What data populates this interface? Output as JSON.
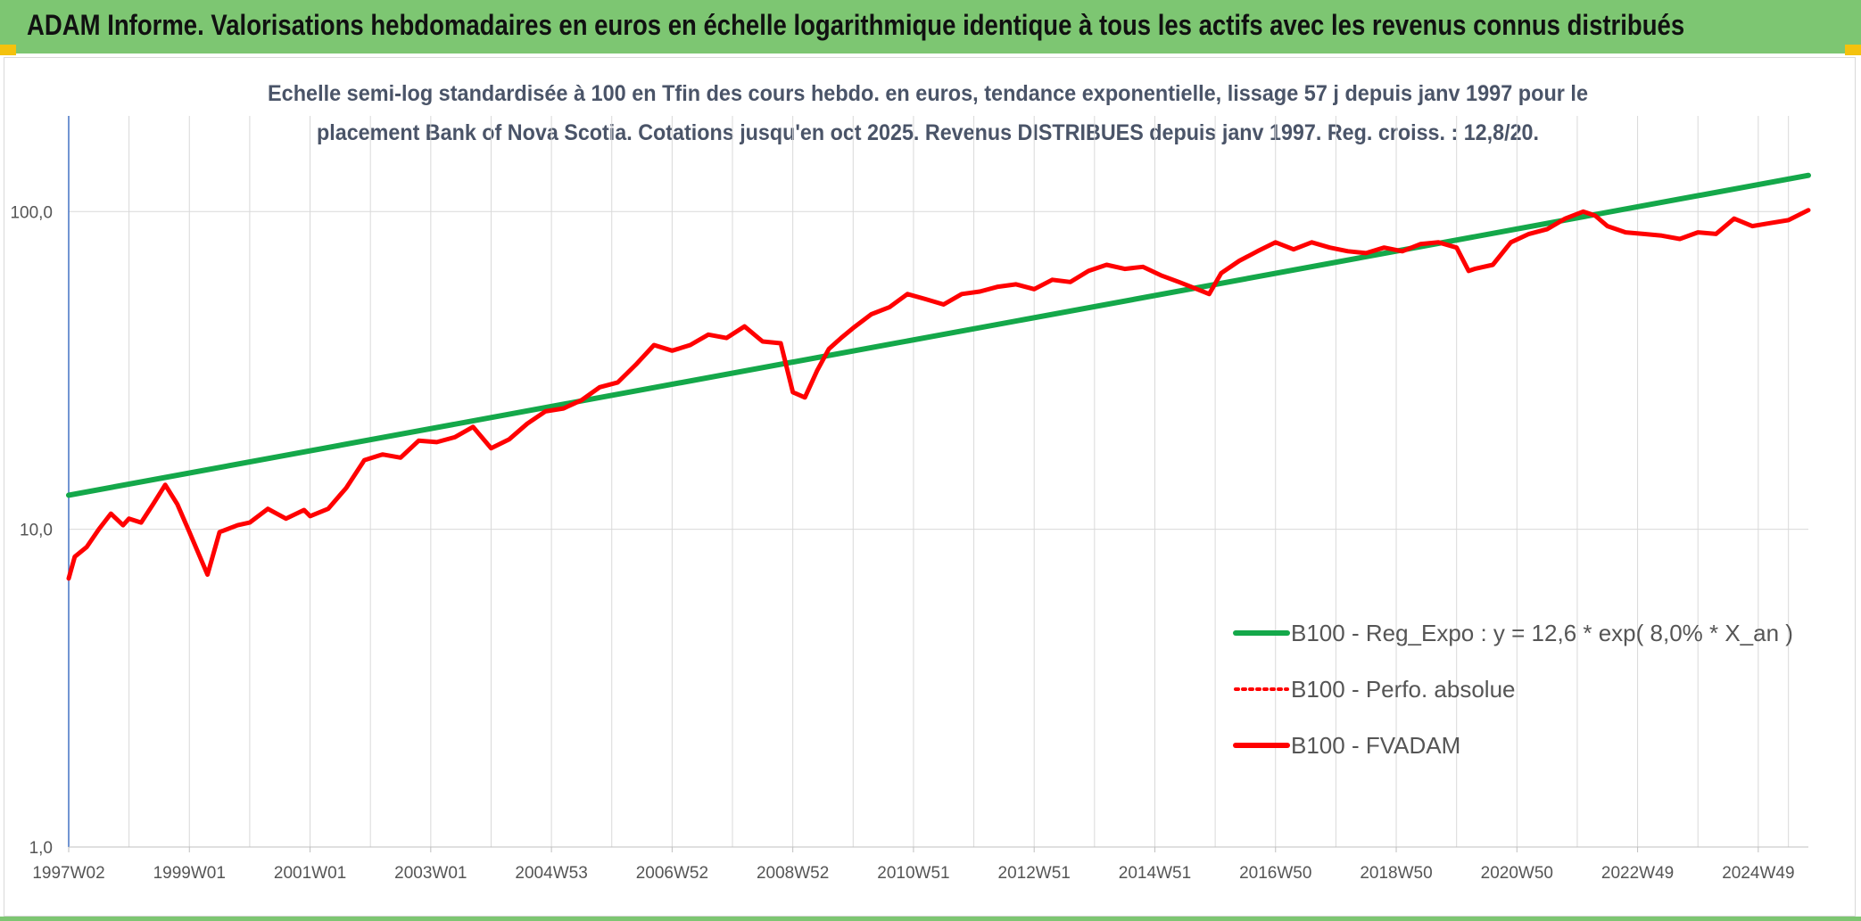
{
  "header": {
    "title": "ADAM Informe. Valorisations hebdomadaires en euros en échelle logarithmique identique à tous les actifs avec les revenus connus distribués"
  },
  "colors": {
    "header_bg": "#7dc672",
    "regression": "#14a84a",
    "fvadam": "#ff0000",
    "perfo": "#ff0000"
  },
  "chart_data": {
    "type": "line",
    "title_lines": [
      "Echelle semi-log standardisée à 100 en Tfin des cours hebdo. en euros, tendance exponentielle, lissage 57 j depuis janv 1997 pour le",
      "placement Bank of Nova Scotia. Cotations jusqu'en oct 2025. Revenus DISTRIBUES depuis janv 1997. Reg. croiss. : 12,8/20."
    ],
    "y_scale": "log",
    "ylim": [
      1,
      200
    ],
    "y_ticks": [
      {
        "value": 1,
        "label": "1,0"
      },
      {
        "value": 10,
        "label": "10,0"
      },
      {
        "value": 100,
        "label": "100,0"
      }
    ],
    "xlim": [
      1997.0,
      2025.83
    ],
    "grid": true,
    "x_ticks": [
      {
        "x": 1997.0,
        "label": "1997W02"
      },
      {
        "x": 1999.0,
        "label": "1999W01"
      },
      {
        "x": 2001.0,
        "label": "2001W01"
      },
      {
        "x": 2003.0,
        "label": "2003W01"
      },
      {
        "x": 2005.0,
        "label": "2004W53"
      },
      {
        "x": 2007.0,
        "label": "2006W52"
      },
      {
        "x": 2009.0,
        "label": "2008W52"
      },
      {
        "x": 2011.0,
        "label": "2010W51"
      },
      {
        "x": 2013.0,
        "label": "2012W51"
      },
      {
        "x": 2015.0,
        "label": "2014W51"
      },
      {
        "x": 2017.0,
        "label": "2016W50"
      },
      {
        "x": 2019.0,
        "label": "2018W50"
      },
      {
        "x": 2021.0,
        "label": "2020W50"
      },
      {
        "x": 2023.0,
        "label": "2022W49"
      },
      {
        "x": 2025.0,
        "label": "2024W49"
      }
    ],
    "legend_position": "bottom-right",
    "series": [
      {
        "name": "B100 - Reg_Expo : y = 12,6 * exp( 8,0% *  X_an )",
        "style": "solid",
        "x": [
          1997.0,
          2025.83
        ],
        "y": [
          12.8,
          130
        ]
      },
      {
        "name": "B100 - Perfo. absolue",
        "style": "dotted",
        "x": [],
        "y": []
      },
      {
        "name": "B100 - FVADAM",
        "style": "solid",
        "x": [
          1997.0,
          1997.1,
          1997.3,
          1997.5,
          1997.7,
          1997.9,
          1998.0,
          1998.2,
          1998.4,
          1998.6,
          1998.8,
          1999.0,
          1999.3,
          1999.5,
          1999.8,
          2000.0,
          2000.3,
          2000.6,
          2000.9,
          2001.0,
          2001.3,
          2001.6,
          2001.9,
          2002.2,
          2002.5,
          2002.8,
          2003.1,
          2003.4,
          2003.7,
          2004.0,
          2004.3,
          2004.6,
          2004.9,
          2005.2,
          2005.5,
          2005.8,
          2006.1,
          2006.4,
          2006.7,
          2007.0,
          2007.3,
          2007.6,
          2007.9,
          2008.2,
          2008.5,
          2008.8,
          2009.0,
          2009.2,
          2009.4,
          2009.6,
          2009.8,
          2010.0,
          2010.3,
          2010.6,
          2010.9,
          2011.2,
          2011.5,
          2011.8,
          2012.1,
          2012.4,
          2012.7,
          2013.0,
          2013.3,
          2013.6,
          2013.9,
          2014.2,
          2014.5,
          2014.8,
          2015.1,
          2015.4,
          2015.7,
          2015.9,
          2016.1,
          2016.4,
          2016.7,
          2017.0,
          2017.3,
          2017.6,
          2017.9,
          2018.2,
          2018.5,
          2018.8,
          2019.1,
          2019.4,
          2019.7,
          2020.0,
          2020.2,
          2020.3,
          2020.6,
          2020.9,
          2021.2,
          2021.5,
          2021.8,
          2022.1,
          2022.3,
          2022.5,
          2022.8,
          2023.1,
          2023.4,
          2023.7,
          2024.0,
          2024.3,
          2024.6,
          2024.9,
          2025.2,
          2025.5,
          2025.83
        ],
        "y": [
          7.0,
          8.2,
          8.8,
          10.0,
          11.2,
          10.3,
          10.8,
          10.5,
          12.0,
          13.8,
          12.0,
          9.8,
          7.2,
          9.8,
          10.3,
          10.5,
          11.6,
          10.8,
          11.5,
          11.0,
          11.6,
          13.5,
          16.5,
          17.2,
          16.8,
          19.0,
          18.8,
          19.5,
          21.0,
          18.0,
          19.2,
          21.5,
          23.5,
          24.0,
          25.5,
          28.0,
          29.0,
          33.0,
          38.0,
          36.5,
          38.0,
          41.0,
          40.0,
          43.5,
          39.0,
          38.5,
          27.0,
          26.0,
          31.5,
          37.0,
          40.0,
          43.0,
          47.5,
          50.0,
          55.0,
          53.0,
          51.0,
          55.0,
          56.0,
          58.0,
          59.0,
          57.0,
          61.0,
          60.0,
          65.0,
          68.0,
          66.0,
          67.0,
          63.0,
          60.0,
          57.0,
          55.0,
          64.0,
          70.0,
          75.0,
          80.0,
          76.0,
          80.0,
          77.0,
          75.0,
          74.0,
          77.0,
          75.0,
          79.0,
          80.0,
          77.0,
          65.0,
          66.0,
          68.0,
          80.0,
          85.0,
          88.0,
          95.0,
          100.0,
          97.0,
          90.0,
          86.0,
          85.0,
          84.0,
          82.0,
          86.0,
          85.0,
          95.0,
          90.0,
          92.0,
          94.0,
          101.0
        ]
      }
    ]
  }
}
